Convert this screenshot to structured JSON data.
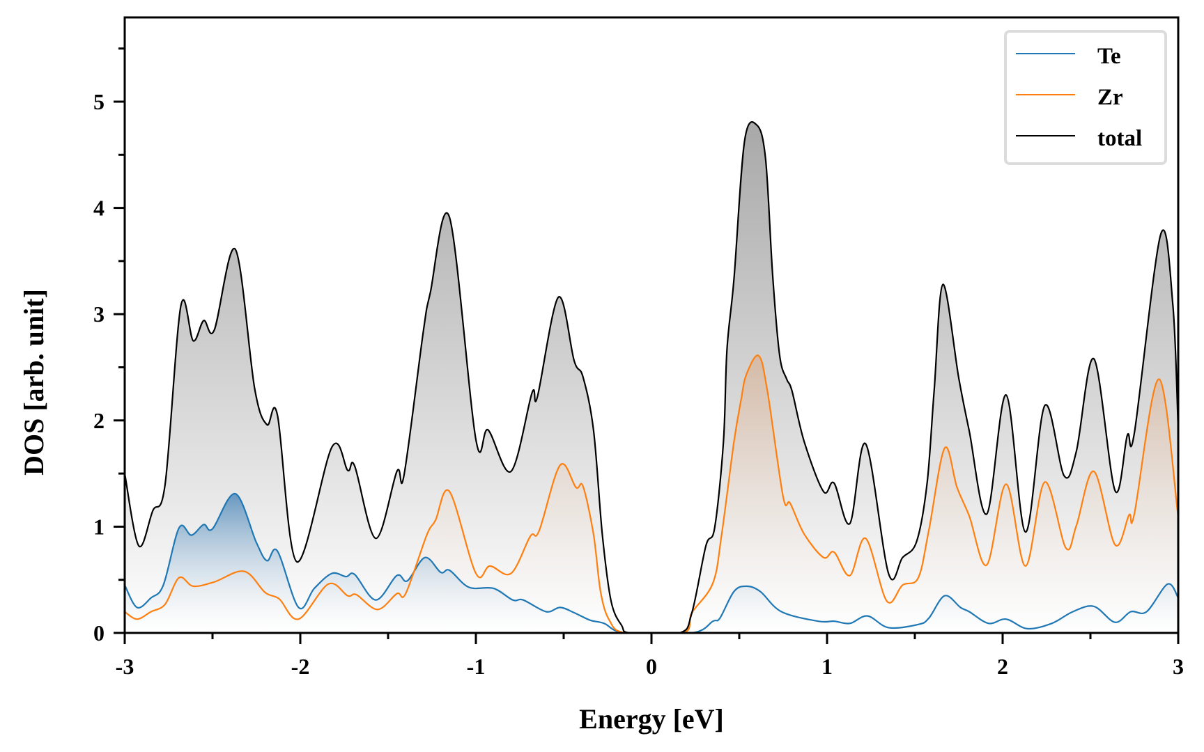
{
  "chart_data": {
    "type": "area",
    "title": "",
    "xlabel": "Energy [eV]",
    "ylabel": "DOS [arb. unit]",
    "xlim": [
      -3,
      3
    ],
    "ylim": [
      0,
      5.8
    ],
    "xticks": [
      -3,
      -2,
      -1,
      0,
      1,
      2,
      3
    ],
    "xtick_labels": [
      "-3",
      "-2",
      "-1",
      "0",
      "1",
      "2",
      "3"
    ],
    "yticks": [
      0,
      1,
      2,
      3,
      4,
      5
    ],
    "ytick_labels": [
      "0",
      "1",
      "2",
      "3",
      "4",
      "5"
    ],
    "x_minor_step": 0.5,
    "y_minor_step": 0.5,
    "grid": false,
    "legend": {
      "position": "top-right",
      "entries": [
        "Te",
        "Zr",
        "total"
      ]
    },
    "series": [
      {
        "name": "Te",
        "color": "#1f77b4",
        "fill_color": "#4a86b8",
        "points": [
          [
            -3.0,
            0.45
          ],
          [
            -2.93,
            0.24
          ],
          [
            -2.85,
            0.33
          ],
          [
            -2.78,
            0.45
          ],
          [
            -2.69,
            0.99
          ],
          [
            -2.62,
            0.92
          ],
          [
            -2.55,
            1.02
          ],
          [
            -2.5,
            0.98
          ],
          [
            -2.37,
            1.31
          ],
          [
            -2.25,
            0.85
          ],
          [
            -2.19,
            0.68
          ],
          [
            -2.13,
            0.77
          ],
          [
            -2.01,
            0.24
          ],
          [
            -1.92,
            0.42
          ],
          [
            -1.82,
            0.56
          ],
          [
            -1.74,
            0.53
          ],
          [
            -1.69,
            0.55
          ],
          [
            -1.57,
            0.31
          ],
          [
            -1.45,
            0.54
          ],
          [
            -1.39,
            0.49
          ],
          [
            -1.29,
            0.71
          ],
          [
            -1.2,
            0.57
          ],
          [
            -1.15,
            0.59
          ],
          [
            -1.04,
            0.43
          ],
          [
            -0.9,
            0.42
          ],
          [
            -0.79,
            0.31
          ],
          [
            -0.73,
            0.31
          ],
          [
            -0.6,
            0.2
          ],
          [
            -0.52,
            0.24
          ],
          [
            -0.44,
            0.19
          ],
          [
            -0.35,
            0.12
          ],
          [
            -0.27,
            0.09
          ],
          [
            -0.15,
            0.0
          ],
          [
            0.23,
            0.0
          ],
          [
            0.35,
            0.11
          ],
          [
            0.39,
            0.14
          ],
          [
            0.47,
            0.39
          ],
          [
            0.54,
            0.44
          ],
          [
            0.62,
            0.39
          ],
          [
            0.74,
            0.2
          ],
          [
            0.95,
            0.11
          ],
          [
            1.04,
            0.11
          ],
          [
            1.13,
            0.09
          ],
          [
            1.23,
            0.16
          ],
          [
            1.35,
            0.05
          ],
          [
            1.52,
            0.08
          ],
          [
            1.58,
            0.14
          ],
          [
            1.67,
            0.35
          ],
          [
            1.76,
            0.24
          ],
          [
            1.81,
            0.2
          ],
          [
            1.92,
            0.09
          ],
          [
            2.02,
            0.13
          ],
          [
            2.14,
            0.04
          ],
          [
            2.28,
            0.09
          ],
          [
            2.4,
            0.2
          ],
          [
            2.52,
            0.25
          ],
          [
            2.64,
            0.1
          ],
          [
            2.73,
            0.2
          ],
          [
            2.82,
            0.2
          ],
          [
            2.94,
            0.46
          ],
          [
            3.0,
            0.33
          ]
        ]
      },
      {
        "name": "Zr",
        "color": "#ff7f0e",
        "fill_color": "#e0a070",
        "points": [
          [
            -3.0,
            0.2
          ],
          [
            -2.93,
            0.13
          ],
          [
            -2.85,
            0.2
          ],
          [
            -2.77,
            0.27
          ],
          [
            -2.69,
            0.52
          ],
          [
            -2.61,
            0.44
          ],
          [
            -2.49,
            0.48
          ],
          [
            -2.32,
            0.58
          ],
          [
            -2.2,
            0.38
          ],
          [
            -2.12,
            0.32
          ],
          [
            -2.01,
            0.13
          ],
          [
            -1.84,
            0.46
          ],
          [
            -1.73,
            0.35
          ],
          [
            -1.68,
            0.36
          ],
          [
            -1.56,
            0.22
          ],
          [
            -1.45,
            0.37
          ],
          [
            -1.4,
            0.37
          ],
          [
            -1.28,
            0.92
          ],
          [
            -1.23,
            1.06
          ],
          [
            -1.15,
            1.33
          ],
          [
            -1.0,
            0.56
          ],
          [
            -0.92,
            0.63
          ],
          [
            -0.8,
            0.56
          ],
          [
            -0.69,
            0.91
          ],
          [
            -0.64,
            0.96
          ],
          [
            -0.52,
            1.58
          ],
          [
            -0.43,
            1.37
          ],
          [
            -0.39,
            1.38
          ],
          [
            -0.33,
            0.93
          ],
          [
            -0.29,
            0.39
          ],
          [
            -0.24,
            0.12
          ],
          [
            -0.15,
            0.0
          ],
          [
            0.18,
            0.0
          ],
          [
            0.23,
            0.19
          ],
          [
            0.35,
            0.47
          ],
          [
            0.4,
            0.93
          ],
          [
            0.47,
            1.8
          ],
          [
            0.51,
            2.19
          ],
          [
            0.54,
            2.43
          ],
          [
            0.61,
            2.61
          ],
          [
            0.66,
            2.28
          ],
          [
            0.75,
            1.28
          ],
          [
            0.79,
            1.22
          ],
          [
            0.87,
            0.93
          ],
          [
            0.98,
            0.71
          ],
          [
            1.04,
            0.76
          ],
          [
            1.13,
            0.54
          ],
          [
            1.22,
            0.89
          ],
          [
            1.34,
            0.3
          ],
          [
            1.43,
            0.45
          ],
          [
            1.52,
            0.52
          ],
          [
            1.58,
            0.97
          ],
          [
            1.67,
            1.74
          ],
          [
            1.74,
            1.37
          ],
          [
            1.81,
            1.1
          ],
          [
            1.91,
            0.64
          ],
          [
            2.02,
            1.4
          ],
          [
            2.13,
            0.63
          ],
          [
            2.24,
            1.42
          ],
          [
            2.36,
            0.8
          ],
          [
            2.42,
            1.01
          ],
          [
            2.52,
            1.52
          ],
          [
            2.64,
            0.83
          ],
          [
            2.72,
            1.11
          ],
          [
            2.75,
            1.12
          ],
          [
            2.89,
            2.39
          ],
          [
            3.0,
            1.09
          ]
        ]
      },
      {
        "name": "total",
        "color": "#000000",
        "fill_color": "#a8a8a8",
        "points": [
          [
            -3.0,
            1.5
          ],
          [
            -2.92,
            0.82
          ],
          [
            -2.84,
            1.15
          ],
          [
            -2.77,
            1.4
          ],
          [
            -2.68,
            3.08
          ],
          [
            -2.61,
            2.75
          ],
          [
            -2.55,
            2.94
          ],
          [
            -2.49,
            2.85
          ],
          [
            -2.37,
            3.61
          ],
          [
            -2.26,
            2.3
          ],
          [
            -2.19,
            1.96
          ],
          [
            -2.13,
            2.05
          ],
          [
            -2.02,
            0.67
          ],
          [
            -1.82,
            1.75
          ],
          [
            -1.73,
            1.53
          ],
          [
            -1.69,
            1.57
          ],
          [
            -1.57,
            0.89
          ],
          [
            -1.45,
            1.52
          ],
          [
            -1.41,
            1.48
          ],
          [
            -1.3,
            2.83
          ],
          [
            -1.26,
            3.2
          ],
          [
            -1.15,
            3.91
          ],
          [
            -1.0,
            1.82
          ],
          [
            -0.93,
            1.91
          ],
          [
            -0.8,
            1.52
          ],
          [
            -0.68,
            2.26
          ],
          [
            -0.65,
            2.22
          ],
          [
            -0.53,
            3.16
          ],
          [
            -0.44,
            2.56
          ],
          [
            -0.39,
            2.41
          ],
          [
            -0.33,
            1.91
          ],
          [
            -0.28,
            0.93
          ],
          [
            -0.23,
            0.3
          ],
          [
            -0.17,
            0.07
          ],
          [
            -0.12,
            0.0
          ],
          [
            0.16,
            0.0
          ],
          [
            0.23,
            0.19
          ],
          [
            0.31,
            0.82
          ],
          [
            0.36,
            0.99
          ],
          [
            0.41,
            1.8
          ],
          [
            0.43,
            2.67
          ],
          [
            0.47,
            3.33
          ],
          [
            0.53,
            4.63
          ],
          [
            0.6,
            4.78
          ],
          [
            0.65,
            4.46
          ],
          [
            0.69,
            3.37
          ],
          [
            0.73,
            2.61
          ],
          [
            0.77,
            2.39
          ],
          [
            0.8,
            2.28
          ],
          [
            0.87,
            1.8
          ],
          [
            0.98,
            1.33
          ],
          [
            1.04,
            1.41
          ],
          [
            1.13,
            1.03
          ],
          [
            1.22,
            1.78
          ],
          [
            1.35,
            0.56
          ],
          [
            1.43,
            0.71
          ],
          [
            1.51,
            0.86
          ],
          [
            1.57,
            1.41
          ],
          [
            1.61,
            2.28
          ],
          [
            1.66,
            3.28
          ],
          [
            1.75,
            2.4
          ],
          [
            1.81,
            1.9
          ],
          [
            1.91,
            1.12
          ],
          [
            2.02,
            2.24
          ],
          [
            2.13,
            0.95
          ],
          [
            2.24,
            2.14
          ],
          [
            2.35,
            1.48
          ],
          [
            2.42,
            1.71
          ],
          [
            2.52,
            2.58
          ],
          [
            2.64,
            1.34
          ],
          [
            2.71,
            1.86
          ],
          [
            2.75,
            1.88
          ],
          [
            2.9,
            3.75
          ],
          [
            2.97,
            3.08
          ],
          [
            3.0,
            1.91
          ]
        ]
      }
    ]
  }
}
